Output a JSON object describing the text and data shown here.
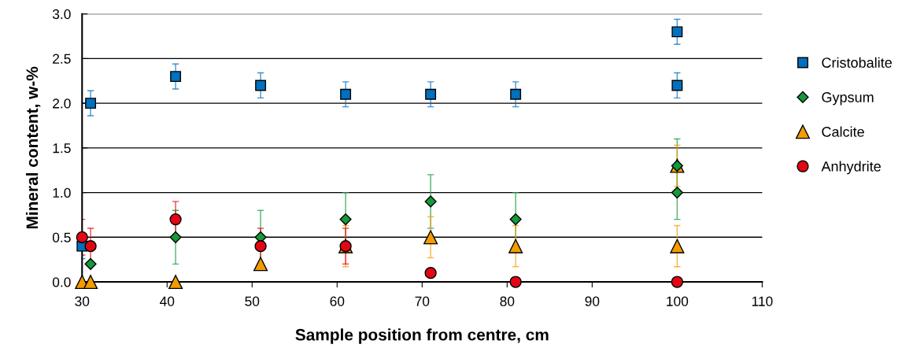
{
  "chart_data": {
    "type": "scatter",
    "xlabel": "Sample position from centre, cm",
    "ylabel": "Mineral content, w-%",
    "xlim": [
      30,
      110
    ],
    "xticks": [
      30,
      40,
      50,
      60,
      70,
      80,
      90,
      100,
      110
    ],
    "ylim": [
      0,
      3
    ],
    "yticks": [
      {
        "value": 0,
        "label": "0.0"
      },
      {
        "value": 0.5,
        "label": "0.5"
      },
      {
        "value": 1,
        "label": "1.0"
      },
      {
        "value": 1.5,
        "label": "1.5"
      },
      {
        "value": 2,
        "label": "2.0"
      },
      {
        "value": 2.5,
        "label": "2.5"
      },
      {
        "value": 3,
        "label": "3.0"
      }
    ],
    "grid": "y",
    "legend": "right",
    "series": [
      {
        "name": "Cristobalite",
        "color": "#0070c0",
        "marker": "square",
        "x": [
          30,
          31,
          41,
          51,
          61,
          71,
          81,
          100,
          100
        ],
        "values": [
          0.4,
          2.0,
          2.3,
          2.2,
          2.1,
          2.1,
          2.1,
          2.8,
          2.2
        ],
        "errors": [
          0.14,
          0.14,
          0.14,
          0.14,
          0.14,
          0.14,
          0.14,
          0.14,
          0.14
        ]
      },
      {
        "name": "Gypsum",
        "color": "#139a3a",
        "marker": "diamond",
        "x": [
          31,
          41,
          51,
          61,
          71,
          81,
          100,
          100
        ],
        "values": [
          0.2,
          0.5,
          0.5,
          0.7,
          0.9,
          0.7,
          1.0,
          1.3
        ],
        "errors": [
          null,
          0.3,
          0.3,
          0.3,
          0.3,
          0.3,
          0.3,
          0.3
        ]
      },
      {
        "name": "Calcite",
        "color": "#f39c00",
        "marker": "triangle",
        "x": [
          30,
          31,
          41,
          51,
          61,
          71,
          81,
          100,
          100
        ],
        "values": [
          0,
          0,
          0,
          0.2,
          0.4,
          0.5,
          0.4,
          0.4,
          1.3
        ],
        "errors": [
          null,
          null,
          null,
          null,
          0.23,
          0.23,
          0.23,
          0.23,
          0.23
        ]
      },
      {
        "name": "Anhydrite",
        "color": "#e30613",
        "marker": "circle",
        "x": [
          30,
          31,
          41,
          51,
          61,
          71,
          81,
          100
        ],
        "values": [
          0.5,
          0.4,
          0.7,
          0.4,
          0.4,
          0.1,
          0,
          0
        ],
        "errors": [
          0.2,
          0.2,
          0.2,
          0.2,
          0.2,
          null,
          null,
          null
        ]
      }
    ]
  }
}
